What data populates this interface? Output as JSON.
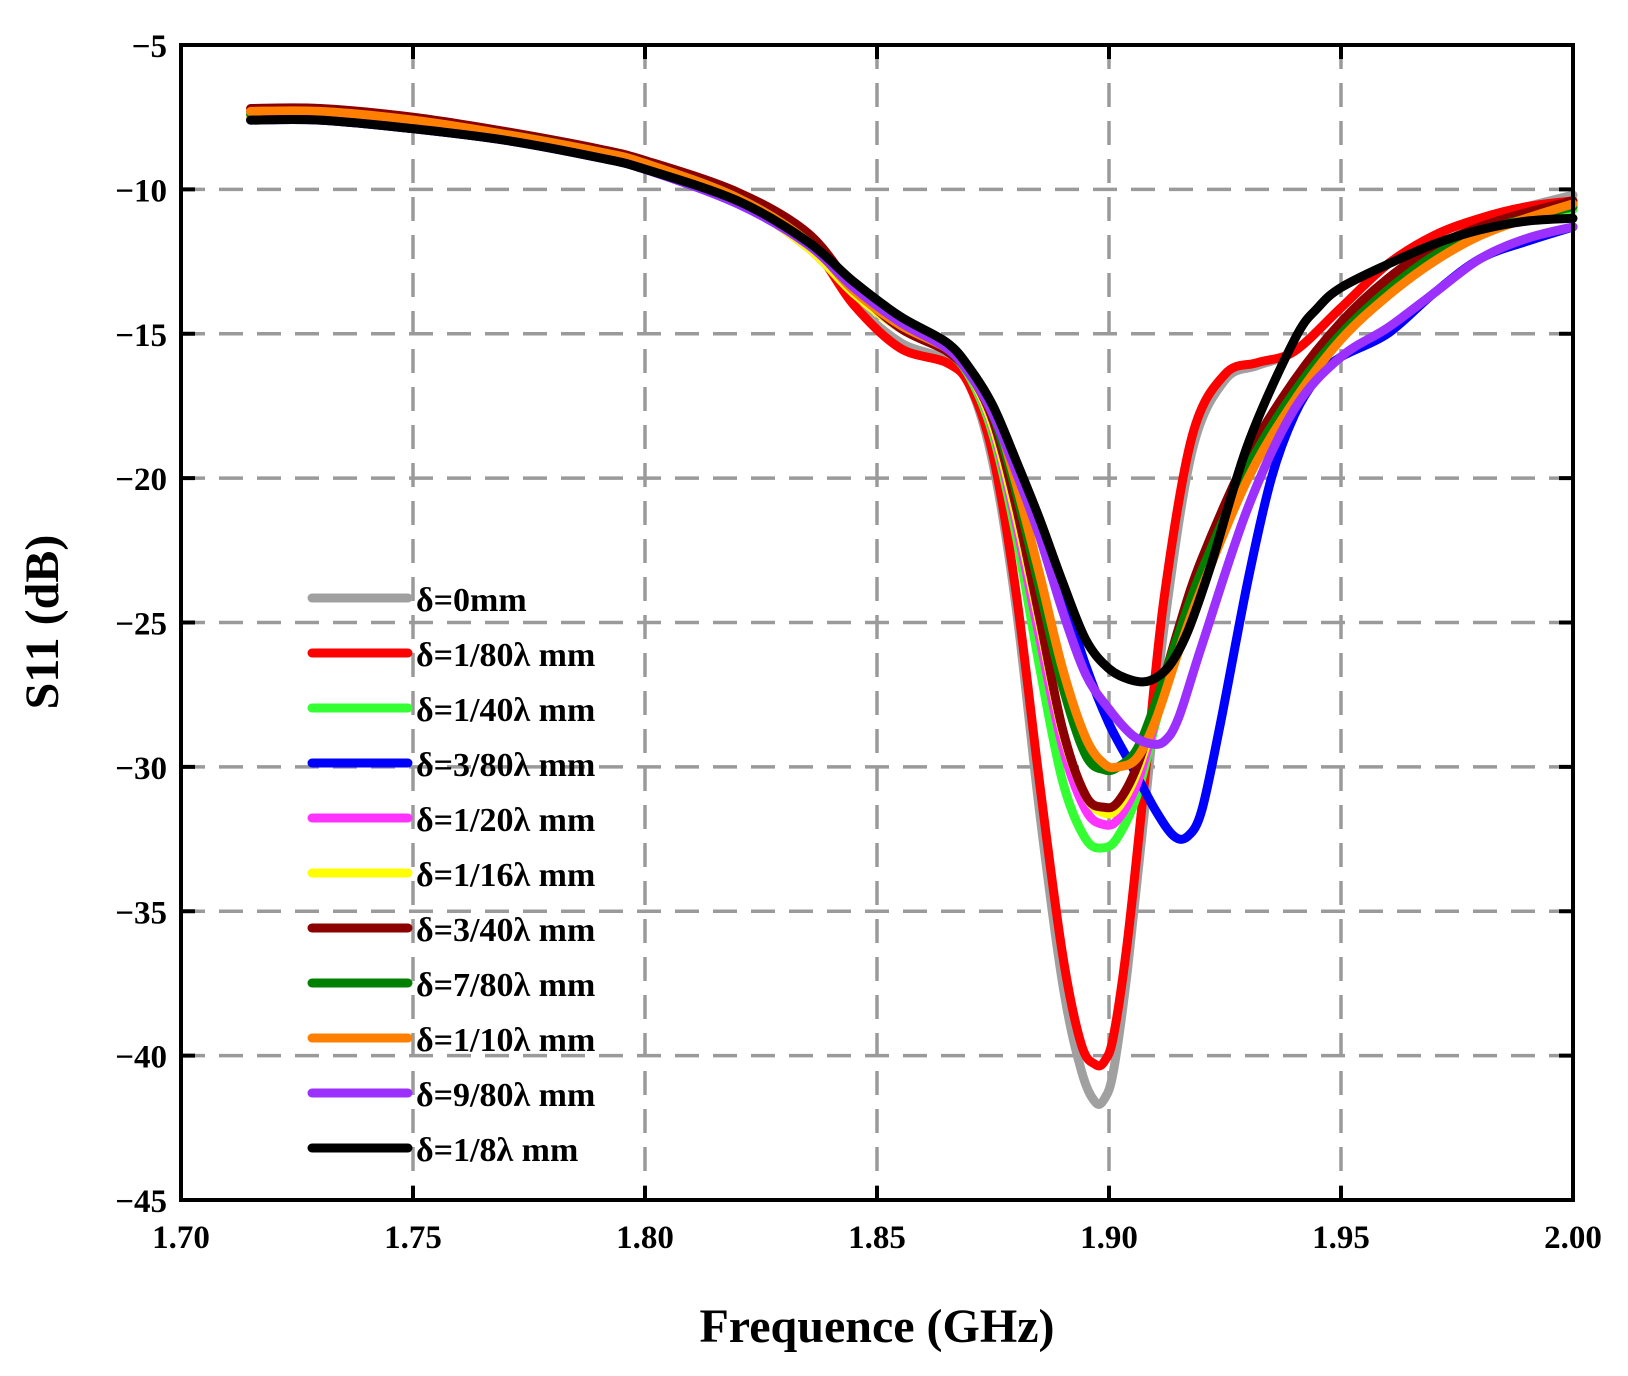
{
  "chart_data": {
    "type": "line",
    "title": "",
    "xlabel": "Frequence (GHz)",
    "ylabel": "S11 (dB)",
    "xlim": [
      1.7,
      2.0
    ],
    "ylim": [
      -45,
      -5
    ],
    "xticks": [
      1.7,
      1.75,
      1.8,
      1.85,
      1.9,
      1.95,
      2.0
    ],
    "xtick_labels": [
      "1.70",
      "1.75",
      "1.80",
      "1.85",
      "1.90",
      "1.95",
      "2.00"
    ],
    "yticks": [
      -45,
      -40,
      -35,
      -30,
      -25,
      -20,
      -15,
      -10,
      -5
    ],
    "ytick_labels": [
      "−45",
      "−40",
      "−35",
      "−30",
      "−25",
      "−20",
      "−15",
      "−10",
      "−5"
    ],
    "grid": true,
    "legend_position": "lower-left",
    "series": [
      {
        "name": "δ=0mm",
        "color": "#a0a0a0",
        "x": [
          1.715,
          1.73,
          1.75,
          1.77,
          1.79,
          1.8,
          1.82,
          1.835,
          1.845,
          1.855,
          1.865,
          1.87,
          1.875,
          1.88,
          1.885,
          1.89,
          1.894,
          1.897,
          1.899,
          1.901,
          1.904,
          1.908,
          1.912,
          1.918,
          1.925,
          1.932,
          1.94,
          1.95,
          1.96,
          1.97,
          1.98,
          1.99,
          2.0
        ],
        "y": [
          -7.3,
          -7.3,
          -7.6,
          -8.1,
          -8.7,
          -9.1,
          -10.3,
          -11.8,
          -13.9,
          -15.3,
          -15.9,
          -16.8,
          -19.5,
          -24.5,
          -31.5,
          -37.5,
          -40.5,
          -41.6,
          -41.5,
          -40.5,
          -37,
          -31,
          -25,
          -19,
          -16.6,
          -16.1,
          -15.6,
          -14.1,
          -12.6,
          -11.6,
          -11,
          -10.6,
          -10.2
        ]
      },
      {
        "name": "δ=1/80λ mm",
        "color": "#ff0000",
        "x": [
          1.715,
          1.73,
          1.75,
          1.77,
          1.79,
          1.8,
          1.82,
          1.835,
          1.845,
          1.855,
          1.865,
          1.87,
          1.875,
          1.88,
          1.885,
          1.89,
          1.894,
          1.897,
          1.899,
          1.901,
          1.904,
          1.908,
          1.912,
          1.918,
          1.925,
          1.932,
          1.94,
          1.95,
          1.96,
          1.97,
          1.98,
          1.99,
          2.0
        ],
        "y": [
          -7.3,
          -7.3,
          -7.6,
          -8.1,
          -8.7,
          -9.1,
          -10.3,
          -11.8,
          -14,
          -15.5,
          -16,
          -16.8,
          -19.2,
          -24,
          -30.5,
          -36.5,
          -39.6,
          -40.3,
          -40.2,
          -39.3,
          -36,
          -30,
          -24,
          -18.5,
          -16.4,
          -16,
          -15.6,
          -14.1,
          -12.6,
          -11.6,
          -11,
          -10.6,
          -10.4
        ]
      },
      {
        "name": "δ=1/40λ mm",
        "color": "#33ff33",
        "x": [
          1.715,
          1.73,
          1.75,
          1.77,
          1.79,
          1.8,
          1.82,
          1.835,
          1.845,
          1.855,
          1.865,
          1.87,
          1.875,
          1.88,
          1.885,
          1.89,
          1.895,
          1.899,
          1.902,
          1.906,
          1.91,
          1.915,
          1.92,
          1.93,
          1.94,
          1.95,
          1.96,
          1.97,
          1.98,
          1.99,
          2.0
        ],
        "y": [
          -7.5,
          -7.5,
          -7.8,
          -8.2,
          -8.8,
          -9.2,
          -10.4,
          -12,
          -13.6,
          -14.8,
          -15.6,
          -16.5,
          -18.5,
          -22,
          -26.5,
          -30.5,
          -32.5,
          -32.8,
          -32.4,
          -31,
          -28.5,
          -25.5,
          -23,
          -19.5,
          -17,
          -15,
          -13.5,
          -12.3,
          -11.5,
          -11,
          -10.7
        ]
      },
      {
        "name": "δ=3/80λ mm",
        "color": "#0000ff",
        "x": [
          1.715,
          1.73,
          1.75,
          1.77,
          1.79,
          1.8,
          1.82,
          1.835,
          1.845,
          1.855,
          1.865,
          1.87,
          1.875,
          1.88,
          1.885,
          1.89,
          1.895,
          1.9,
          1.905,
          1.91,
          1.914,
          1.917,
          1.92,
          1.924,
          1.93,
          1.935,
          1.94,
          1.945,
          1.95,
          1.96,
          1.97,
          1.98,
          1.99,
          2.0
        ],
        "y": [
          -7.6,
          -7.6,
          -7.9,
          -8.3,
          -8.9,
          -9.3,
          -10.5,
          -11.9,
          -13.4,
          -14.6,
          -15.5,
          -16.4,
          -17.8,
          -19.8,
          -21.8,
          -24,
          -26.5,
          -28.5,
          -30,
          -31.5,
          -32.4,
          -32.4,
          -31.5,
          -28.5,
          -23.5,
          -20,
          -17.8,
          -16.5,
          -15.8,
          -15,
          -13.6,
          -12.4,
          -11.8,
          -11.3
        ]
      },
      {
        "name": "δ=1/20λ mm",
        "color": "#ff33ff",
        "x": [
          1.715,
          1.73,
          1.75,
          1.77,
          1.79,
          1.8,
          1.82,
          1.835,
          1.845,
          1.855,
          1.865,
          1.87,
          1.875,
          1.88,
          1.885,
          1.89,
          1.895,
          1.899,
          1.902,
          1.906,
          1.91,
          1.915,
          1.92,
          1.93,
          1.94,
          1.95,
          1.96,
          1.97,
          1.98,
          1.99,
          2.0
        ],
        "y": [
          -7.5,
          -7.5,
          -7.8,
          -8.2,
          -8.8,
          -9.2,
          -10.4,
          -12,
          -13.6,
          -14.8,
          -15.6,
          -16.4,
          -18.3,
          -21.6,
          -25.5,
          -29.3,
          -31.5,
          -32,
          -31.8,
          -30.6,
          -28.4,
          -25.6,
          -23.2,
          -19.6,
          -17,
          -15,
          -13.5,
          -12.3,
          -11.5,
          -11,
          -10.6
        ]
      },
      {
        "name": "δ=1/16λ mm",
        "color": "#ffff00",
        "x": [
          1.715,
          1.73,
          1.75,
          1.77,
          1.79,
          1.8,
          1.82,
          1.835,
          1.845,
          1.855,
          1.865,
          1.87,
          1.875,
          1.88,
          1.885,
          1.89,
          1.895,
          1.899,
          1.902,
          1.906,
          1.91,
          1.915,
          1.92,
          1.93,
          1.94,
          1.95,
          1.96,
          1.97,
          1.98,
          1.99,
          2.0
        ],
        "y": [
          -7.5,
          -7.5,
          -7.8,
          -8.2,
          -8.8,
          -9.2,
          -10.4,
          -12,
          -13.6,
          -14.8,
          -15.6,
          -16.4,
          -18.2,
          -21.3,
          -25,
          -28.8,
          -31,
          -31.6,
          -31.4,
          -30.2,
          -28.2,
          -25.6,
          -23.2,
          -19.6,
          -17,
          -15,
          -13.5,
          -12.3,
          -11.5,
          -11,
          -10.6
        ]
      },
      {
        "name": "δ=3/40λ mm",
        "color": "#8b0000",
        "x": [
          1.715,
          1.73,
          1.75,
          1.77,
          1.79,
          1.8,
          1.82,
          1.835,
          1.845,
          1.855,
          1.865,
          1.87,
          1.875,
          1.88,
          1.885,
          1.89,
          1.895,
          1.899,
          1.902,
          1.906,
          1.91,
          1.915,
          1.92,
          1.93,
          1.94,
          1.95,
          1.96,
          1.97,
          1.98,
          1.99,
          2.0
        ],
        "y": [
          -7.2,
          -7.2,
          -7.5,
          -8,
          -8.6,
          -9,
          -10.1,
          -11.5,
          -13.4,
          -14.8,
          -15.6,
          -16.4,
          -18,
          -21,
          -24.8,
          -28.7,
          -31,
          -31.4,
          -31.2,
          -30,
          -28,
          -25.2,
          -22.8,
          -19.2,
          -16.6,
          -14.6,
          -13.1,
          -12,
          -11.3,
          -10.8,
          -10.4
        ]
      },
      {
        "name": "δ=7/80λ mm",
        "color": "#008000",
        "x": [
          1.715,
          1.73,
          1.75,
          1.77,
          1.79,
          1.8,
          1.82,
          1.835,
          1.845,
          1.855,
          1.865,
          1.87,
          1.875,
          1.88,
          1.885,
          1.89,
          1.895,
          1.899,
          1.902,
          1.906,
          1.91,
          1.915,
          1.92,
          1.93,
          1.94,
          1.95,
          1.96,
          1.97,
          1.98,
          1.99,
          2.0
        ],
        "y": [
          -7.4,
          -7.4,
          -7.7,
          -8.1,
          -8.7,
          -9.1,
          -10.3,
          -11.8,
          -13.5,
          -14.7,
          -15.5,
          -16.3,
          -17.8,
          -20.5,
          -23.8,
          -27.2,
          -29.6,
          -30.1,
          -30,
          -29.4,
          -27.8,
          -25.4,
          -23.2,
          -19.6,
          -17,
          -15,
          -13.5,
          -12.3,
          -11.5,
          -11,
          -10.6
        ]
      },
      {
        "name": "δ=1/10λ mm",
        "color": "#ff8000",
        "x": [
          1.715,
          1.73,
          1.75,
          1.77,
          1.79,
          1.8,
          1.82,
          1.835,
          1.845,
          1.855,
          1.865,
          1.87,
          1.875,
          1.88,
          1.885,
          1.89,
          1.895,
          1.899,
          1.902,
          1.906,
          1.91,
          1.915,
          1.92,
          1.93,
          1.94,
          1.95,
          1.96,
          1.97,
          1.98,
          1.99,
          2.0
        ],
        "y": [
          -7.3,
          -7.3,
          -7.6,
          -8.1,
          -8.7,
          -9.1,
          -10.3,
          -11.8,
          -13.5,
          -14.7,
          -15.5,
          -16.3,
          -17.6,
          -20.2,
          -23.3,
          -26.6,
          -29,
          -29.9,
          -30,
          -29.7,
          -28.4,
          -26,
          -23.8,
          -20,
          -17.3,
          -15.2,
          -13.7,
          -12.5,
          -11.6,
          -11,
          -10.5
        ]
      },
      {
        "name": "δ=9/80λ mm",
        "color": "#9b30ff",
        "x": [
          1.715,
          1.73,
          1.75,
          1.77,
          1.79,
          1.8,
          1.82,
          1.835,
          1.845,
          1.855,
          1.865,
          1.87,
          1.875,
          1.88,
          1.885,
          1.89,
          1.895,
          1.9,
          1.905,
          1.909,
          1.912,
          1.915,
          1.92,
          1.93,
          1.94,
          1.95,
          1.96,
          1.97,
          1.98,
          1.99,
          2.0
        ],
        "y": [
          -7.6,
          -7.6,
          -7.9,
          -8.3,
          -8.9,
          -9.3,
          -10.5,
          -11.9,
          -13.4,
          -14.6,
          -15.5,
          -16.4,
          -17.8,
          -19.8,
          -22,
          -24.6,
          -26.8,
          -28,
          -28.9,
          -29.2,
          -29.1,
          -28.3,
          -25.8,
          -21,
          -17.6,
          -15.8,
          -14.8,
          -13.6,
          -12.4,
          -11.7,
          -11.3
        ]
      },
      {
        "name": "δ=1/8λ mm",
        "color": "#000000",
        "x": [
          1.715,
          1.73,
          1.75,
          1.77,
          1.79,
          1.8,
          1.82,
          1.835,
          1.845,
          1.855,
          1.865,
          1.87,
          1.875,
          1.88,
          1.885,
          1.89,
          1.895,
          1.9,
          1.905,
          1.909,
          1.913,
          1.917,
          1.922,
          1.93,
          1.94,
          1.945,
          1.95,
          1.96,
          1.97,
          1.98,
          1.99,
          2.0
        ],
        "y": [
          -7.6,
          -7.6,
          -7.9,
          -8.3,
          -8.9,
          -9.3,
          -10.4,
          -11.8,
          -13.2,
          -14.4,
          -15.3,
          -16.2,
          -17.5,
          -19.4,
          -21.4,
          -23.6,
          -25.6,
          -26.6,
          -27,
          -27,
          -26.5,
          -25.3,
          -23,
          -18.8,
          -15.2,
          -14.1,
          -13.4,
          -12.6,
          -11.9,
          -11.4,
          -11.1,
          -11
        ]
      }
    ]
  }
}
